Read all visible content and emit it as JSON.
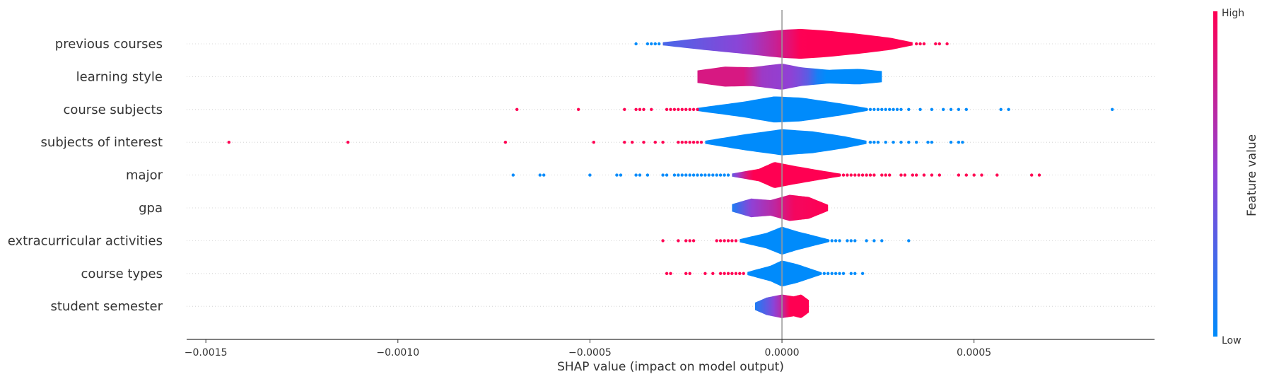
{
  "chart_data": {
    "type": "violin",
    "xlabel": "SHAP value (impact on model output)",
    "xlim": [
      -0.00155,
      0.00097
    ],
    "xticks": [
      {
        "value": -0.0015,
        "label": "−0.0015"
      },
      {
        "value": -0.001,
        "label": "−0.0010"
      },
      {
        "value": -0.0005,
        "label": "−0.0005"
      },
      {
        "value": 0.0,
        "label": "0.0000"
      },
      {
        "value": 0.0005,
        "label": "0.0005"
      }
    ],
    "colorbar": {
      "title": "Feature value",
      "high": "High",
      "low": "Low",
      "high_color": "#ff0052",
      "low_color": "#008bfb",
      "mid_color": "#8f42d6"
    },
    "features": [
      {
        "name": "previous courses",
        "violin": {
          "range": [
            -0.00031,
            0.00034
          ],
          "width": [
            [
              -0.00031,
              0.05
            ],
            [
              -0.0002,
              0.2
            ],
            [
              -0.0001,
              0.32
            ],
            [
              0,
              0.45
            ],
            [
              5e-05,
              0.48
            ],
            [
              0.00012,
              0.42
            ],
            [
              0.0002,
              0.32
            ],
            [
              0.00028,
              0.2
            ],
            [
              0.00034,
              0.05
            ]
          ],
          "color": [
            [
              -0.00031,
              0.25
            ],
            [
              -0.0001,
              0.5
            ],
            [
              0,
              0.8
            ],
            [
              5e-05,
              1
            ],
            [
              0.00034,
              1
            ]
          ]
        },
        "points": [
          [
            -0.00038,
            0
          ],
          [
            -0.00035,
            0
          ],
          [
            -0.00034,
            0
          ],
          [
            -0.00033,
            0
          ],
          [
            -0.00032,
            0
          ],
          [
            0.00035,
            1
          ],
          [
            0.00036,
            1
          ],
          [
            0.00037,
            1
          ],
          [
            0.0004,
            1
          ],
          [
            0.00041,
            1
          ],
          [
            0.00043,
            1
          ]
        ]
      },
      {
        "name": "learning style",
        "violin": {
          "range": [
            -0.00022,
            0.00026
          ],
          "width": [
            [
              -0.00022,
              0.2
            ],
            [
              -0.00015,
              0.32
            ],
            [
              -8e-05,
              0.3
            ],
            [
              0,
              0.42
            ],
            [
              5e-05,
              0.3
            ],
            [
              0.00012,
              0.22
            ],
            [
              0.0002,
              0.25
            ],
            [
              0.00026,
              0.18
            ]
          ],
          "color": [
            [
              -0.00022,
              0.82
            ],
            [
              -0.0001,
              0.82
            ],
            [
              -5e-05,
              0.55
            ],
            [
              3e-05,
              0.5
            ],
            [
              7e-05,
              0.3
            ],
            [
              0.0001,
              0
            ],
            [
              0.00026,
              0
            ]
          ]
        },
        "points": []
      },
      {
        "name": "course subjects",
        "violin": {
          "range": [
            -0.00022,
            0.00022
          ],
          "width": [
            [
              -0.00022,
              0.05
            ],
            [
              -0.0001,
              0.25
            ],
            [
              -2e-05,
              0.42
            ],
            [
              5e-05,
              0.38
            ],
            [
              0.00015,
              0.2
            ],
            [
              0.00022,
              0.05
            ]
          ],
          "color": [
            [
              -0.00022,
              0
            ],
            [
              0.00022,
              0
            ]
          ]
        },
        "points": [
          [
            -0.00069,
            1
          ],
          [
            -0.00053,
            1
          ],
          [
            -0.00041,
            1
          ],
          [
            -0.00038,
            1
          ],
          [
            -0.00037,
            1
          ],
          [
            -0.00036,
            1
          ],
          [
            -0.00034,
            1
          ],
          [
            -0.0003,
            1
          ],
          [
            -0.00029,
            1
          ],
          [
            -0.00028,
            1
          ],
          [
            -0.00027,
            1
          ],
          [
            -0.00026,
            1
          ],
          [
            -0.00025,
            1
          ],
          [
            -0.00024,
            1
          ],
          [
            -0.00023,
            1
          ],
          [
            -0.00022,
            1
          ],
          [
            0.00022,
            0
          ],
          [
            0.00023,
            0
          ],
          [
            0.00024,
            0
          ],
          [
            0.00025,
            0
          ],
          [
            0.00026,
            0
          ],
          [
            0.00027,
            0
          ],
          [
            0.00028,
            0
          ],
          [
            0.00029,
            0
          ],
          [
            0.0003,
            0
          ],
          [
            0.00031,
            0
          ],
          [
            0.00033,
            0
          ],
          [
            0.00036,
            0
          ],
          [
            0.00039,
            0
          ],
          [
            0.00042,
            0
          ],
          [
            0.00044,
            0
          ],
          [
            0.00046,
            0
          ],
          [
            0.00048,
            0
          ],
          [
            0.00057,
            0
          ],
          [
            0.00059,
            0
          ],
          [
            0.00086,
            0
          ]
        ]
      },
      {
        "name": "subjects of interest",
        "violin": {
          "range": [
            -0.0002,
            0.00022
          ],
          "width": [
            [
              -0.0002,
              0.05
            ],
            [
              -0.0001,
              0.25
            ],
            [
              0,
              0.42
            ],
            [
              8e-05,
              0.35
            ],
            [
              0.00016,
              0.2
            ],
            [
              0.00022,
              0.05
            ]
          ],
          "color": [
            [
              -0.0002,
              0
            ],
            [
              0.00022,
              0
            ]
          ]
        },
        "points": [
          [
            -0.00144,
            1
          ],
          [
            -0.00113,
            1
          ],
          [
            -0.00072,
            1
          ],
          [
            -0.00049,
            1
          ],
          [
            -0.00041,
            1
          ],
          [
            -0.00039,
            1
          ],
          [
            -0.00036,
            1
          ],
          [
            -0.00033,
            1
          ],
          [
            -0.00031,
            1
          ],
          [
            -0.00027,
            1
          ],
          [
            -0.00026,
            1
          ],
          [
            -0.00025,
            1
          ],
          [
            -0.00024,
            1
          ],
          [
            -0.00023,
            1
          ],
          [
            -0.00022,
            1
          ],
          [
            -0.00021,
            1
          ],
          [
            0.00023,
            0
          ],
          [
            0.00024,
            0
          ],
          [
            0.00025,
            0
          ],
          [
            0.00027,
            0
          ],
          [
            0.00029,
            0
          ],
          [
            0.00031,
            0
          ],
          [
            0.00033,
            0
          ],
          [
            0.00035,
            0
          ],
          [
            0.00038,
            0
          ],
          [
            0.00039,
            0
          ],
          [
            0.00044,
            0
          ],
          [
            0.00046,
            0
          ],
          [
            0.00047,
            0
          ]
        ]
      },
      {
        "name": "major",
        "violin": {
          "range": [
            -0.00013,
            0.00015
          ],
          "width": [
            [
              -0.00013,
              0.05
            ],
            [
              -6e-05,
              0.2
            ],
            [
              -2e-05,
              0.42
            ],
            [
              3e-05,
              0.3
            ],
            [
              0.0001,
              0.15
            ],
            [
              0.00015,
              0.05
            ]
          ],
          "color": [
            [
              -0.00013,
              0.35
            ],
            [
              -8e-05,
              1
            ],
            [
              0.00015,
              1
            ]
          ]
        },
        "points": [
          [
            -0.0007,
            0
          ],
          [
            -0.00063,
            0
          ],
          [
            -0.00062,
            0
          ],
          [
            -0.0005,
            0
          ],
          [
            -0.00043,
            0
          ],
          [
            -0.00042,
            0
          ],
          [
            -0.00038,
            0
          ],
          [
            -0.00037,
            0
          ],
          [
            -0.00035,
            0
          ],
          [
            -0.00031,
            0
          ],
          [
            -0.0003,
            0
          ],
          [
            -0.00028,
            0
          ],
          [
            -0.00027,
            0
          ],
          [
            -0.00026,
            0
          ],
          [
            -0.00025,
            0
          ],
          [
            -0.00024,
            0
          ],
          [
            -0.00023,
            0
          ],
          [
            -0.00022,
            0
          ],
          [
            -0.00021,
            0
          ],
          [
            -0.0002,
            0
          ],
          [
            -0.00019,
            0
          ],
          [
            -0.00018,
            0
          ],
          [
            -0.00017,
            0
          ],
          [
            -0.00016,
            0
          ],
          [
            -0.00015,
            0
          ],
          [
            -0.00014,
            0
          ],
          [
            0.00015,
            1
          ],
          [
            0.00016,
            1
          ],
          [
            0.00017,
            1
          ],
          [
            0.00018,
            1
          ],
          [
            0.00019,
            1
          ],
          [
            0.0002,
            1
          ],
          [
            0.00021,
            1
          ],
          [
            0.00022,
            1
          ],
          [
            0.00023,
            1
          ],
          [
            0.00024,
            1
          ],
          [
            0.00026,
            1
          ],
          [
            0.00027,
            1
          ],
          [
            0.00028,
            1
          ],
          [
            0.00031,
            1
          ],
          [
            0.00032,
            1
          ],
          [
            0.00034,
            1
          ],
          [
            0.00035,
            1
          ],
          [
            0.00037,
            1
          ],
          [
            0.00039,
            1
          ],
          [
            0.00041,
            1
          ],
          [
            0.00046,
            1
          ],
          [
            0.00048,
            1
          ],
          [
            0.0005,
            1
          ],
          [
            0.00052,
            1
          ],
          [
            0.00056,
            1
          ],
          [
            0.00065,
            1
          ],
          [
            0.00067,
            1
          ]
        ]
      },
      {
        "name": "gpa",
        "violin": {
          "range": [
            -0.00013,
            0.00012
          ],
          "width": [
            [
              -0.00013,
              0.12
            ],
            [
              -8e-05,
              0.3
            ],
            [
              -3e-05,
              0.25
            ],
            [
              2e-05,
              0.42
            ],
            [
              7e-05,
              0.35
            ],
            [
              0.00012,
              0.1
            ]
          ],
          "color": [
            [
              -0.00013,
              0.1
            ],
            [
              -8e-05,
              0.5
            ],
            [
              -2e-05,
              0.7
            ],
            [
              3e-05,
              0.95
            ],
            [
              0.00012,
              1
            ]
          ]
        },
        "points": []
      },
      {
        "name": "extracurricular activities",
        "violin": {
          "range": [
            -0.00011,
            0.00012
          ],
          "width": [
            [
              -0.00011,
              0.05
            ],
            [
              -4e-05,
              0.25
            ],
            [
              0,
              0.45
            ],
            [
              4e-05,
              0.3
            ],
            [
              0.00012,
              0.05
            ]
          ],
          "color": [
            [
              -0.00011,
              0
            ],
            [
              0.00012,
              0
            ]
          ]
        },
        "points": [
          [
            -0.00031,
            1
          ],
          [
            -0.00027,
            1
          ],
          [
            -0.00025,
            1
          ],
          [
            -0.00024,
            1
          ],
          [
            -0.00023,
            1
          ],
          [
            -0.00017,
            1
          ],
          [
            -0.00016,
            1
          ],
          [
            -0.00015,
            1
          ],
          [
            -0.00014,
            1
          ],
          [
            -0.00013,
            1
          ],
          [
            -0.00012,
            1
          ],
          [
            0.00012,
            0
          ],
          [
            0.00013,
            0
          ],
          [
            0.00014,
            0
          ],
          [
            0.00015,
            0
          ],
          [
            0.00017,
            0
          ],
          [
            0.00018,
            0
          ],
          [
            0.00019,
            0
          ],
          [
            0.00022,
            0
          ],
          [
            0.00024,
            0
          ],
          [
            0.00026,
            0
          ],
          [
            0.00033,
            0
          ]
        ]
      },
      {
        "name": "course types",
        "violin": {
          "range": [
            -9e-05,
            0.0001
          ],
          "width": [
            [
              -9e-05,
              0.05
            ],
            [
              -3e-05,
              0.25
            ],
            [
              0,
              0.42
            ],
            [
              4e-05,
              0.3
            ],
            [
              0.0001,
              0.05
            ]
          ],
          "color": [
            [
              -9e-05,
              0
            ],
            [
              0.0001,
              0
            ]
          ]
        },
        "points": [
          [
            -0.0003,
            1
          ],
          [
            -0.00029,
            1
          ],
          [
            -0.00025,
            1
          ],
          [
            -0.00024,
            1
          ],
          [
            -0.0002,
            1
          ],
          [
            -0.00018,
            1
          ],
          [
            -0.00016,
            1
          ],
          [
            -0.00015,
            1
          ],
          [
            -0.00014,
            1
          ],
          [
            -0.00013,
            1
          ],
          [
            -0.00012,
            1
          ],
          [
            -0.00011,
            1
          ],
          [
            -0.0001,
            1
          ],
          [
            0.0001,
            0
          ],
          [
            0.00011,
            0
          ],
          [
            0.00012,
            0
          ],
          [
            0.00013,
            0
          ],
          [
            0.00014,
            0
          ],
          [
            0.00015,
            0
          ],
          [
            0.00016,
            0
          ],
          [
            0.00018,
            0
          ],
          [
            0.00019,
            0
          ],
          [
            0.00021,
            0
          ]
        ]
      },
      {
        "name": "student semester",
        "violin": {
          "range": [
            -7e-05,
            7e-05
          ],
          "width": [
            [
              -7e-05,
              0.12
            ],
            [
              -4e-05,
              0.28
            ],
            [
              0,
              0.38
            ],
            [
              3e-05,
              0.32
            ],
            [
              5e-05,
              0.38
            ],
            [
              7e-05,
              0.2
            ]
          ],
          "color": [
            [
              -7e-05,
              0.1
            ],
            [
              -3e-05,
              0.4
            ],
            [
              0,
              0.7
            ],
            [
              2e-05,
              1
            ],
            [
              7e-05,
              1
            ]
          ]
        },
        "points": []
      }
    ]
  }
}
